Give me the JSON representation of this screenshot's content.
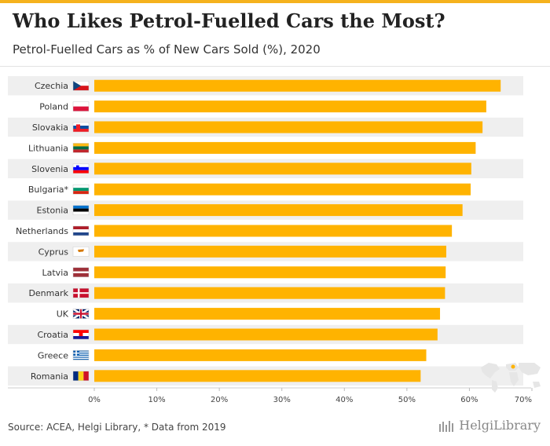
{
  "title": "Who Likes Petrol-Fuelled Cars the Most?",
  "subtitle": "Petrol-Fuelled Cars as % of New Cars Sold (%), 2020",
  "footer": "Source: ACEA, Helgi Library, * Data from 2019",
  "logo": {
    "text": "HelgiLibrary"
  },
  "colors": {
    "bar": "#ffb300",
    "row_band": "#efefef",
    "title": "#222222",
    "accent": "#f5b21e"
  },
  "chart_data": {
    "type": "bar",
    "orientation": "horizontal",
    "title": "Who Likes Petrol-Fuelled Cars the Most?",
    "subtitle": "Petrol-Fuelled Cars as % of New Cars Sold (%), 2020",
    "categories": [
      "Czechia",
      "Poland",
      "Slovakia",
      "Lithuania",
      "Slovenia",
      "Bulgaria*",
      "Estonia",
      "Netherlands",
      "Cyprus",
      "Latvia",
      "Denmark",
      "UK",
      "Croatia",
      "Greece",
      "Romania"
    ],
    "flags": [
      "czech-flag-icon",
      "poland-flag-icon",
      "slovakia-flag-icon",
      "lithuania-flag-icon",
      "slovenia-flag-icon",
      "bulgaria-flag-icon",
      "estonia-flag-icon",
      "netherlands-flag-icon",
      "cyprus-flag-icon",
      "latvia-flag-icon",
      "denmark-flag-icon",
      "uk-flag-icon",
      "croatia-flag-icon",
      "greece-flag-icon",
      "romania-flag-icon"
    ],
    "values": [
      65.0,
      62.7,
      62.1,
      61.0,
      60.3,
      60.2,
      58.9,
      57.2,
      56.3,
      56.2,
      56.1,
      55.3,
      54.9,
      53.1,
      52.2
    ],
    "xlim": [
      0,
      70
    ],
    "ticks": [
      0,
      10,
      20,
      30,
      40,
      50,
      60,
      70
    ],
    "tick_labels": [
      "0%",
      "10%",
      "20%",
      "30%",
      "40%",
      "50%",
      "60%",
      "70%"
    ],
    "xlabel": "",
    "ylabel": "",
    "grid": false,
    "legend": "none"
  }
}
